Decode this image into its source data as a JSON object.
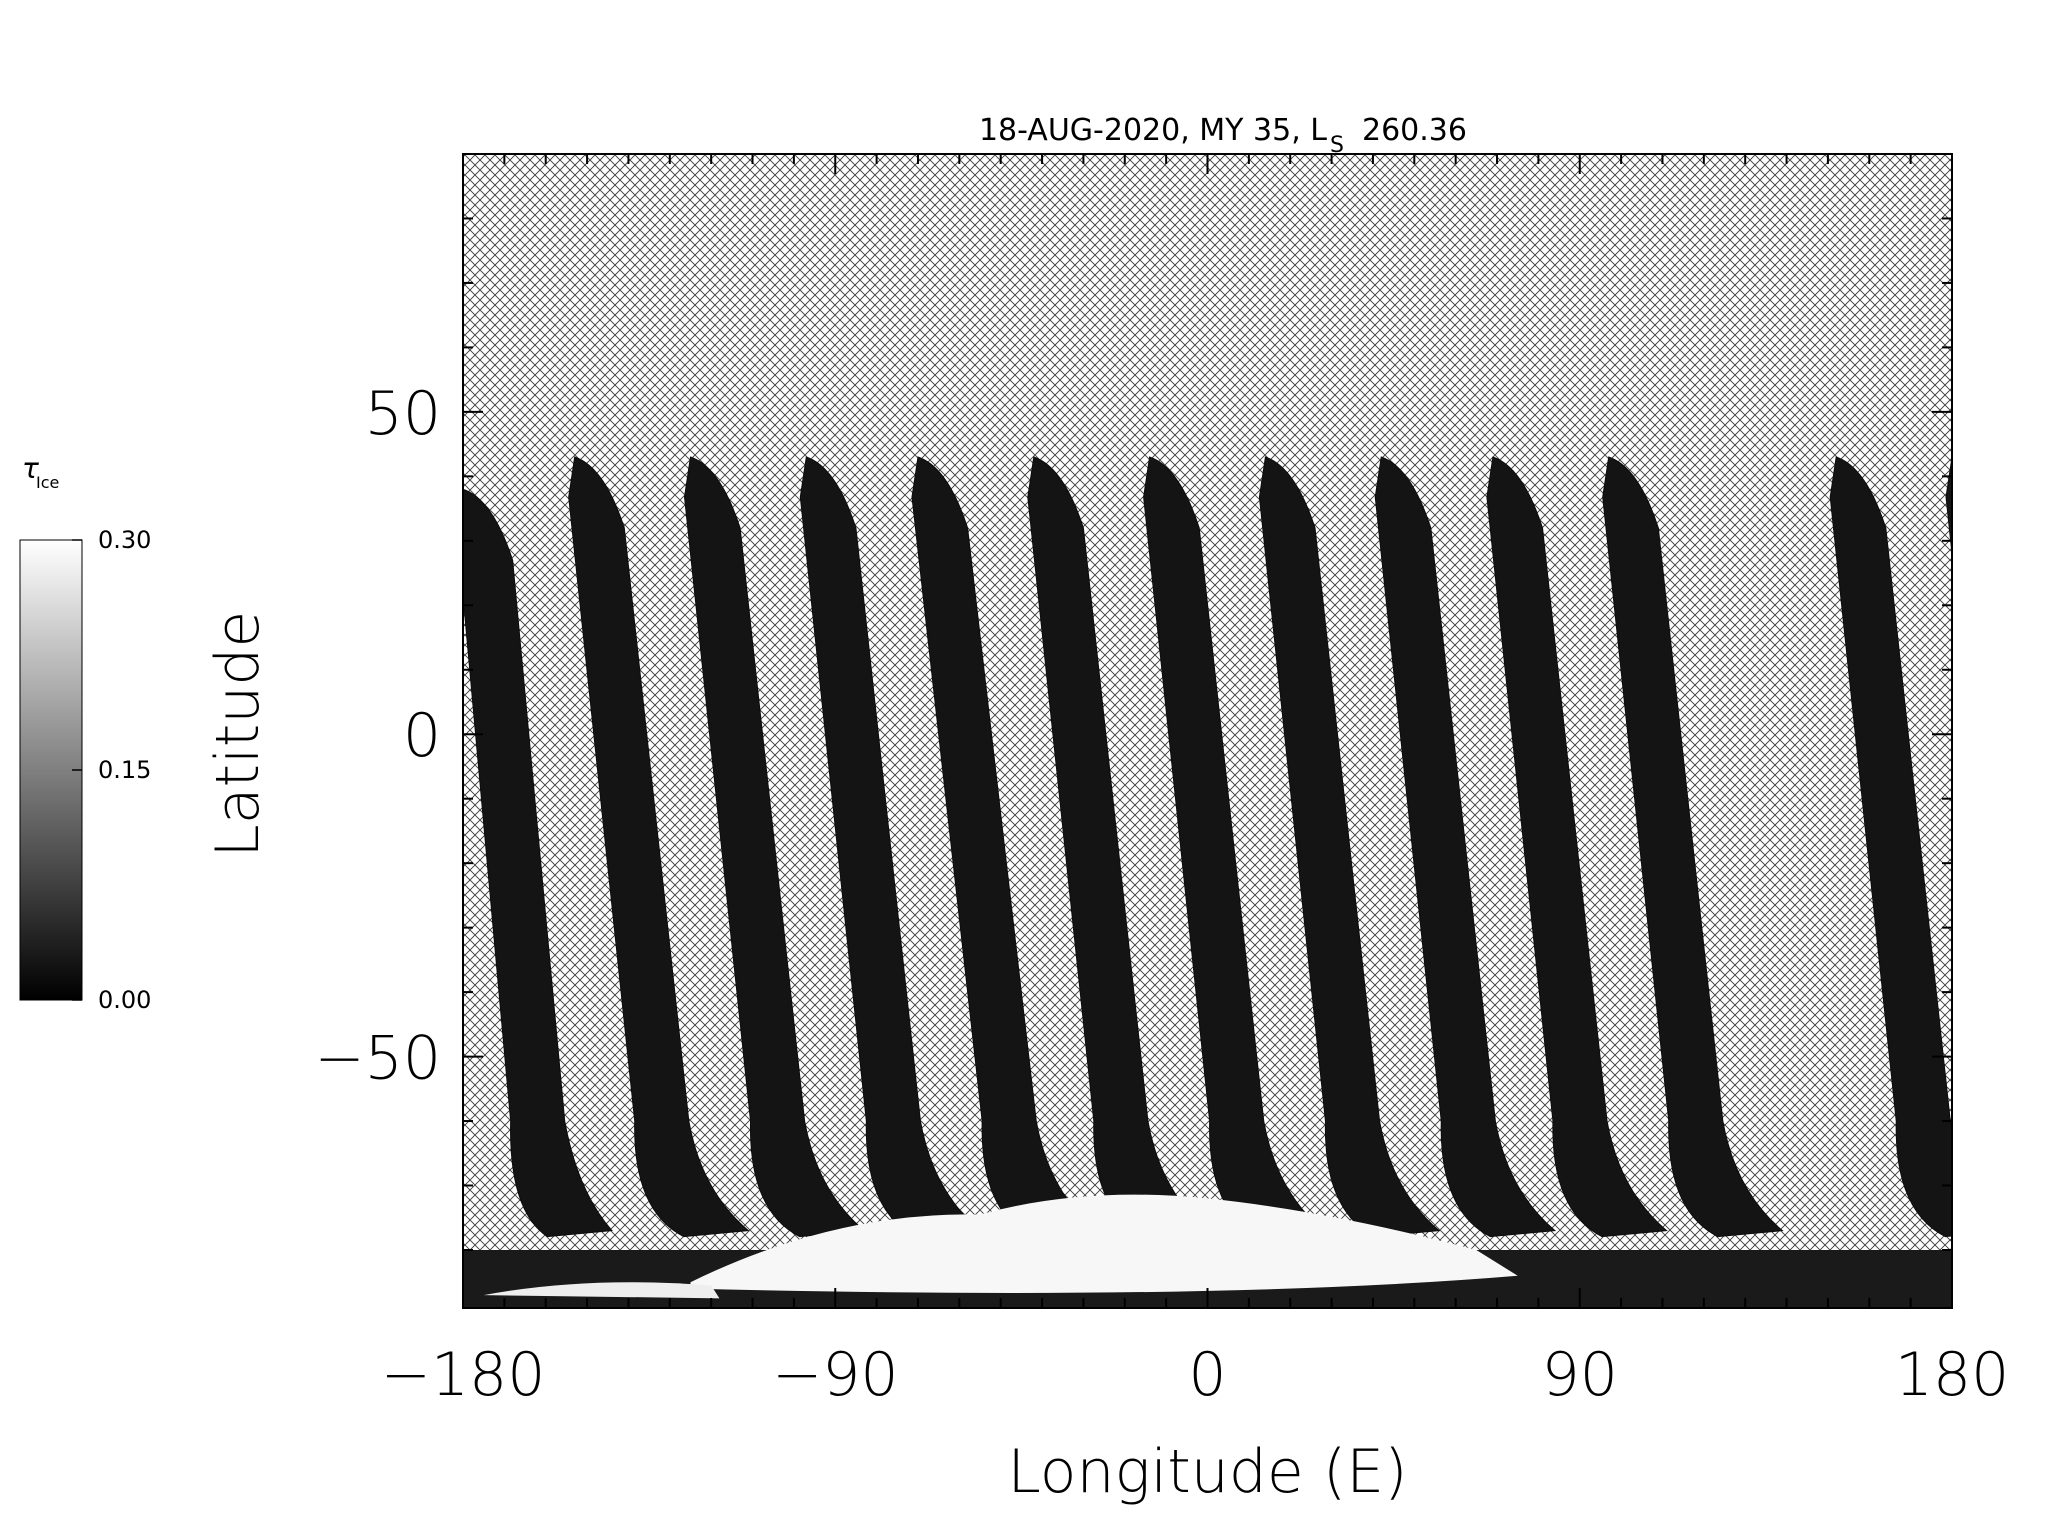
{
  "chart_data": {
    "type": "heatmap",
    "title": "18-AUG-2020, MY 35,  L",
    "title_sub": "S",
    "title_value": "260.36",
    "xlabel": "Longitude (E)",
    "ylabel": "Latitude",
    "xlim": [
      -180,
      180
    ],
    "ylim": [
      -89,
      90
    ],
    "x_ticks": [
      -180,
      -90,
      0,
      90,
      180
    ],
    "x_tick_labels": [
      "−180",
      "−90",
      "0",
      "90",
      "180"
    ],
    "y_ticks": [
      -50,
      0,
      50
    ],
    "y_tick_labels": [
      "−50",
      "0",
      "50"
    ],
    "x_minor_step": 10,
    "y_minor_step": 10,
    "colorbar": {
      "label": "τ",
      "label_sub": "Ice",
      "min": 0.0,
      "max": 0.3,
      "ticks": [
        0.0,
        0.15,
        0.3
      ],
      "tick_labels": [
        "0.00",
        "0.15",
        "0.30"
      ],
      "colormap": "grayscale"
    },
    "no_data_pattern": "crosshatch",
    "swaths": [
      {
        "lon_top": -180,
        "lon_low": -168,
        "lon_base": -150,
        "top_lat": 38
      },
      {
        "lon_top": -153,
        "lon_low": -138,
        "lon_base": -117,
        "top_lat": 43
      },
      {
        "lon_top": -125,
        "lon_low": -110,
        "lon_base": -89,
        "top_lat": 43
      },
      {
        "lon_top": -97,
        "lon_low": -82,
        "lon_base": -61,
        "top_lat": 43
      },
      {
        "lon_top": -70,
        "lon_low": -54,
        "lon_base": -33,
        "top_lat": 43
      },
      {
        "lon_top": -42,
        "lon_low": -27,
        "lon_base": -6,
        "top_lat": 43
      },
      {
        "lon_top": -14,
        "lon_low": 1,
        "lon_base": 22,
        "top_lat": 43
      },
      {
        "lon_top": 14,
        "lon_low": 29,
        "lon_base": 50,
        "top_lat": 43
      },
      {
        "lon_top": 42,
        "lon_low": 57,
        "lon_base": 78,
        "top_lat": 43
      },
      {
        "lon_top": 69,
        "lon_low": 84,
        "lon_base": 105,
        "top_lat": 43
      },
      {
        "lon_top": 97,
        "lon_low": 112,
        "lon_base": 133,
        "top_lat": 43
      },
      {
        "lon_top": 152,
        "lon_low": 167,
        "lon_base": 188,
        "top_lat": 43
      },
      {
        "lon_top": 180,
        "lon_low": 195,
        "lon_base": 216,
        "top_lat": 43
      }
    ],
    "polar_cap": {
      "lat_top": -71,
      "lon_center": -30,
      "tau": 0.3
    }
  }
}
